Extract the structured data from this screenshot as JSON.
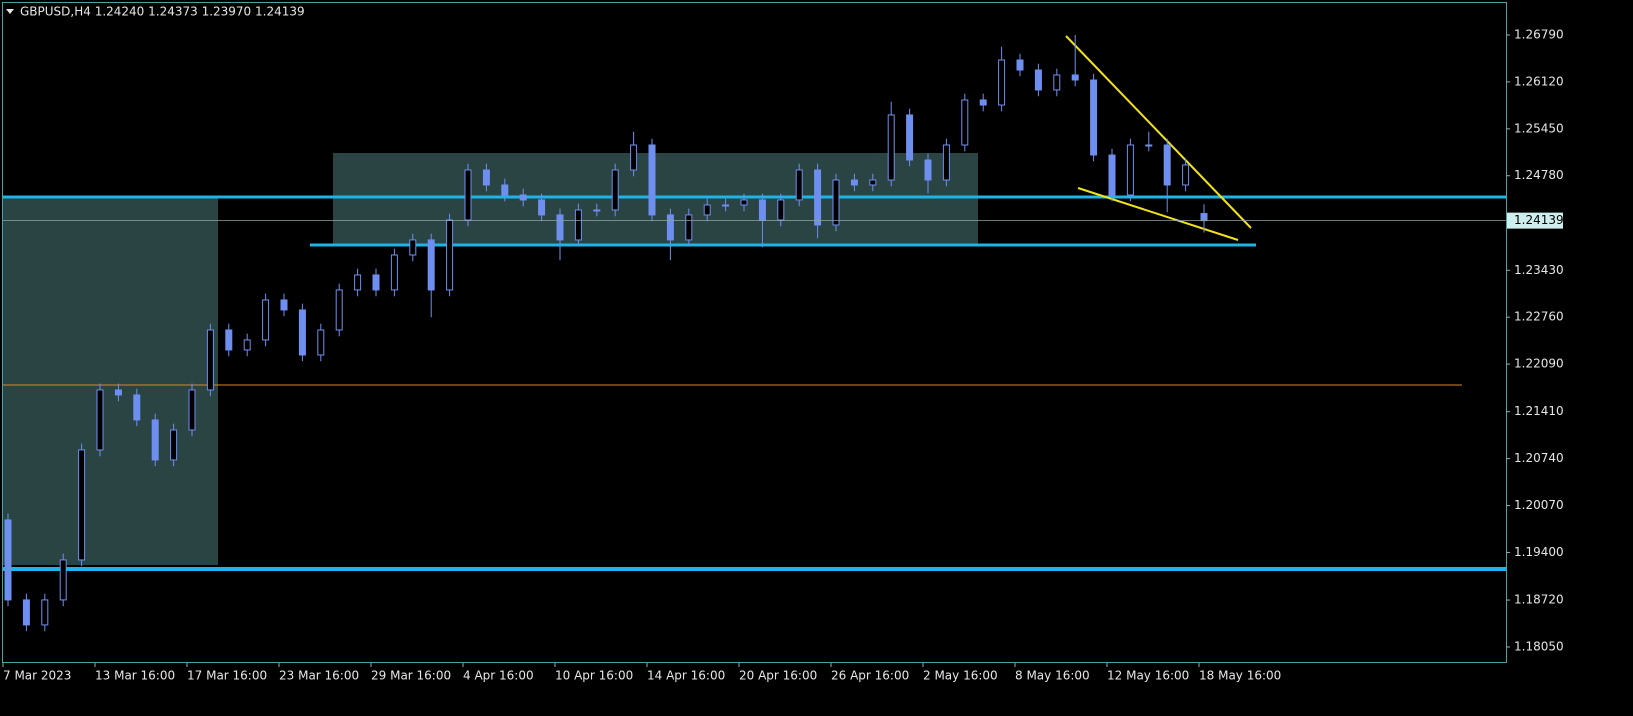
{
  "chart_data": {
    "type": "candlestick",
    "title": "GBPUSD,H4  1.24240 1.24373 1.23970 1.24139",
    "price_label": "1.24139",
    "color": "#6f8ff0",
    "categories": [
      "7 Mar 2023",
      null,
      null,
      null,
      null,
      "13 Mar 16:00",
      null,
      null,
      null,
      null,
      "17 Mar 16:00",
      null,
      null,
      null,
      null,
      "23 Mar 16:00",
      null,
      null,
      null,
      null,
      "29 Mar 16:00",
      null,
      null,
      null,
      null,
      "4 Apr 16:00",
      null,
      null,
      null,
      null,
      "10 Apr 16:00",
      null,
      null,
      null,
      null,
      "14 Apr 16:00",
      null,
      null,
      null,
      null,
      "20 Apr 16:00",
      null,
      null,
      null,
      null,
      "26 Apr 16:00",
      null,
      null,
      null,
      null,
      "2 May 16:00",
      null,
      null,
      null,
      null,
      "8 May 16:00",
      null,
      null,
      null,
      null,
      "12 May 16:00",
      null,
      null,
      null,
      null,
      "18 May 16:00"
    ],
    "open": [
      1.19864,
      1.18722,
      1.18365,
      1.18722,
      1.19293,
      1.20864,
      1.21721,
      1.21649,
      1.21292,
      1.20721,
      1.21149,
      1.21721,
      1.22577,
      1.22292,
      1.22435,
      1.23006,
      1.22863,
      1.2222,
      1.22577,
      1.23149,
      1.23363,
      1.23149,
      1.23648,
      1.23863,
      1.23149,
      1.24148,
      1.24862,
      1.24648,
      1.24505,
      1.24434,
      1.2422,
      1.23863,
      1.24291,
      1.24291,
      1.24862,
      1.25219,
      1.2422,
      1.23863,
      1.2422,
      1.24362,
      1.24362,
      1.24434,
      1.24148,
      1.24434,
      1.24862,
      1.24077,
      1.24719,
      1.24648,
      1.24719,
      1.25648,
      1.25005,
      1.24719,
      1.25219,
      1.25862,
      1.2579,
      1.26433,
      1.2629,
      1.26005,
      1.26219,
      1.26147,
      1.25076,
      1.24505,
      1.25219,
      1.25219,
      1.24648,
      1.2424
    ],
    "high": [
      1.19954,
      1.18812,
      1.18812,
      1.19383,
      1.20954,
      1.21811,
      1.21811,
      1.21739,
      1.21382,
      1.21239,
      1.21811,
      1.22667,
      1.22667,
      1.22525,
      1.23096,
      1.23096,
      1.22953,
      1.22667,
      1.23239,
      1.23453,
      1.23453,
      1.23738,
      1.23953,
      1.23953,
      1.24238,
      1.24952,
      1.24952,
      1.24738,
      1.24595,
      1.24524,
      1.2431,
      1.24381,
      1.24381,
      1.24952,
      1.25409,
      1.25309,
      1.2431,
      1.2431,
      1.24452,
      1.24452,
      1.24524,
      1.24524,
      1.24524,
      1.24952,
      1.24952,
      1.24809,
      1.24809,
      1.24809,
      1.25838,
      1.25738,
      1.25095,
      1.25309,
      1.25952,
      1.25952,
      1.26623,
      1.26523,
      1.2638,
      1.26309,
      1.2679,
      1.26237,
      1.25166,
      1.25309,
      1.25409,
      1.25309,
      1.25024,
      1.24373
    ],
    "low": [
      1.18632,
      1.18275,
      1.18275,
      1.18632,
      1.19203,
      1.20774,
      1.21559,
      1.21202,
      1.20631,
      1.20631,
      1.21059,
      1.21631,
      1.22202,
      1.22202,
      1.22345,
      1.22773,
      1.2213,
      1.2213,
      1.22487,
      1.23059,
      1.23059,
      1.23059,
      1.23558,
      1.22759,
      1.23059,
      1.24058,
      1.24558,
      1.24415,
      1.24344,
      1.2413,
      1.23573,
      1.23773,
      1.24201,
      1.24201,
      1.24772,
      1.2413,
      1.23573,
      1.23773,
      1.2413,
      1.24272,
      1.24272,
      1.23758,
      1.24058,
      1.24344,
      1.23887,
      1.23987,
      1.24558,
      1.24558,
      1.24629,
      1.24915,
      1.24529,
      1.24629,
      1.25129,
      1.257,
      1.257,
      1.262,
      1.25915,
      1.25915,
      1.26057,
      1.24986,
      1.24415,
      1.24415,
      1.25129,
      1.24258,
      1.24558,
      1.2397
    ],
    "close": [
      1.18722,
      1.18365,
      1.18722,
      1.19293,
      1.20864,
      1.21721,
      1.21649,
      1.21292,
      1.20721,
      1.21149,
      1.21721,
      1.22577,
      1.22292,
      1.22435,
      1.23006,
      1.22863,
      1.2222,
      1.22577,
      1.23149,
      1.23363,
      1.23149,
      1.23648,
      1.23863,
      1.23149,
      1.24148,
      1.24862,
      1.24648,
      1.24505,
      1.24434,
      1.2422,
      1.23863,
      1.24291,
      1.24291,
      1.24862,
      1.25219,
      1.2422,
      1.23863,
      1.2422,
      1.24362,
      1.24362,
      1.24434,
      1.24148,
      1.24434,
      1.24862,
      1.24077,
      1.24719,
      1.24648,
      1.24719,
      1.25648,
      1.25005,
      1.24719,
      1.25219,
      1.25862,
      1.2579,
      1.26433,
      1.2629,
      1.26005,
      1.26219,
      1.26147,
      1.25076,
      1.24505,
      1.25219,
      1.25219,
      1.24648,
      1.24934,
      1.24139
    ],
    "ylim": [
      1.17821,
      1.27247
    ],
    "yticks": [
      {
        "value": 1.2679,
        "label": "1.26790"
      },
      {
        "value": 1.2612,
        "label": "1.26120"
      },
      {
        "value": 1.2545,
        "label": "1.25450"
      },
      {
        "value": 1.2478,
        "label": "1.24780"
      },
      {
        "value": 1.2343,
        "label": "1.23430"
      },
      {
        "value": 1.2276,
        "label": "1.22760"
      },
      {
        "value": 1.2209,
        "label": "1.22090"
      },
      {
        "value": 1.2141,
        "label": "1.21410"
      },
      {
        "value": 1.2074,
        "label": "1.20740"
      },
      {
        "value": 1.2007,
        "label": "1.20070"
      },
      {
        "value": 1.194,
        "label": "1.19400"
      },
      {
        "value": 1.1872,
        "label": "1.18720"
      },
      {
        "value": 1.1805,
        "label": "1.18050"
      }
    ]
  }
}
